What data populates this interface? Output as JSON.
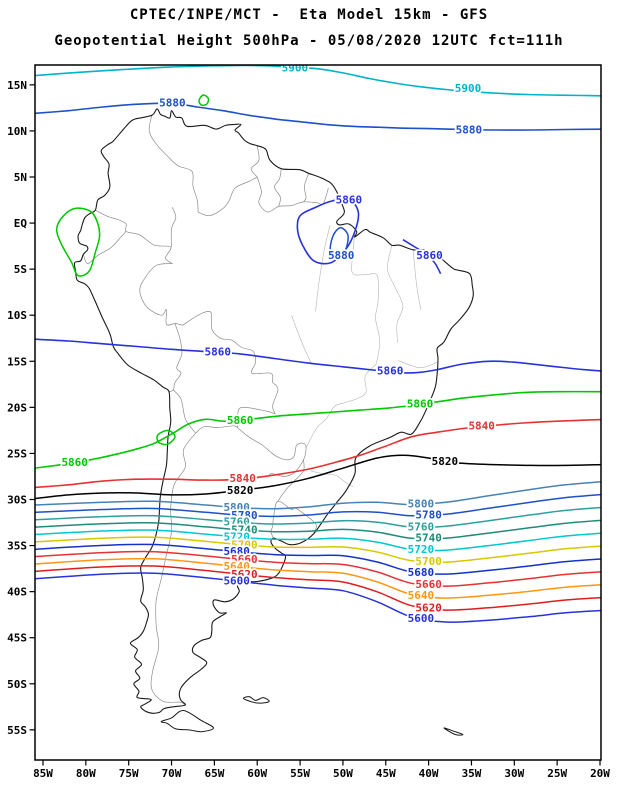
{
  "header": {
    "line1": "CPTEC/INPE/MCT -  Eta Model 15km - GFS",
    "line2": "Geopotential Height 500hPa - 05/08/2020 12UTC fct=111h"
  },
  "axes": {
    "lat": [
      {
        "label": "15N",
        "deg": 15
      },
      {
        "label": "10N",
        "deg": 10
      },
      {
        "label": "5N",
        "deg": 5
      },
      {
        "label": "EQ",
        "deg": 0
      },
      {
        "label": "5S",
        "deg": -5
      },
      {
        "label": "10S",
        "deg": -10
      },
      {
        "label": "15S",
        "deg": -15
      },
      {
        "label": "20S",
        "deg": -20
      },
      {
        "label": "25S",
        "deg": -25
      },
      {
        "label": "30S",
        "deg": -30
      },
      {
        "label": "35S",
        "deg": -35
      },
      {
        "label": "40S",
        "deg": -40
      },
      {
        "label": "45S",
        "deg": -45
      },
      {
        "label": "50S",
        "deg": -50
      },
      {
        "label": "55S",
        "deg": -55
      }
    ],
    "lon": [
      {
        "label": "85W",
        "deg": 85
      },
      {
        "label": "80W",
        "deg": 80
      },
      {
        "label": "75W",
        "deg": 75
      },
      {
        "label": "70W",
        "deg": 70
      },
      {
        "label": "65W",
        "deg": 65
      },
      {
        "label": "60W",
        "deg": 60
      },
      {
        "label": "55W",
        "deg": 55
      },
      {
        "label": "50W",
        "deg": 50
      },
      {
        "label": "45W",
        "deg": 45
      },
      {
        "label": "40W",
        "deg": 40
      },
      {
        "label": "35W",
        "deg": 35
      },
      {
        "label": "30W",
        "deg": 30
      },
      {
        "label": "25W",
        "deg": 25
      },
      {
        "label": "20W",
        "deg": 20
      }
    ]
  },
  "chart_data": {
    "type": "contour-map",
    "title": "CPTEC/INPE/MCT -  Eta Model 15km - GFS",
    "subtitle": "Geopotential Height 500hPa - 05/08/2020 12UTC fct=111h",
    "grid": false,
    "domain": {
      "lon_west": 85,
      "lon_east": 20,
      "lat_north": 15,
      "lat_south": -55
    },
    "contour_interval": 20,
    "contours": [
      {
        "id": "5900-north",
        "level": 5900,
        "color": "#00b4c8",
        "closed": false,
        "width": 1.6,
        "points": [
          [
            86,
            16.0
          ],
          [
            81,
            16.35
          ],
          [
            76,
            16.65
          ],
          [
            71,
            16.9
          ],
          [
            66,
            17.05
          ],
          [
            61,
            17.1
          ],
          [
            57,
            17.0
          ],
          [
            53,
            16.75
          ],
          [
            50,
            16.3
          ],
          [
            47,
            15.7
          ],
          [
            44,
            15.2
          ],
          [
            41,
            14.8
          ],
          [
            38,
            14.5
          ],
          [
            34,
            14.2
          ],
          [
            30,
            14.0
          ],
          [
            26,
            13.9
          ],
          [
            22,
            13.85
          ],
          [
            19,
            13.8
          ]
        ],
        "labels": [
          [
            55.6,
            16.85
          ],
          [
            35.4,
            14.6
          ]
        ]
      },
      {
        "id": "5880-north",
        "level": 5880,
        "color": "#1e50c8",
        "closed": false,
        "width": 1.6,
        "points": [
          [
            86,
            11.9
          ],
          [
            82,
            12.2
          ],
          [
            78,
            12.6
          ],
          [
            74,
            12.9
          ],
          [
            70,
            13.0
          ],
          [
            67,
            12.6
          ],
          [
            64,
            12.2
          ],
          [
            61,
            11.7
          ],
          [
            58,
            11.3
          ],
          [
            55,
            11.0
          ],
          [
            52,
            10.7
          ],
          [
            49,
            10.5
          ],
          [
            46,
            10.4
          ],
          [
            43,
            10.3
          ],
          [
            40,
            10.25
          ],
          [
            36,
            10.15
          ],
          [
            32,
            10.1
          ],
          [
            28,
            10.1
          ],
          [
            24,
            10.15
          ],
          [
            19,
            10.2
          ]
        ],
        "labels": [
          [
            69.9,
            13.05
          ],
          [
            35.3,
            10.1
          ]
        ]
      },
      {
        "id": "green-cell-north",
        "level": 5880,
        "color": "#00c800",
        "closed": true,
        "width": 1.5,
        "points": [
          [
            66.8,
            13.3
          ],
          [
            66.3,
            13.9
          ],
          [
            65.7,
            13.5
          ],
          [
            65.9,
            12.9
          ],
          [
            66.5,
            12.8
          ]
        ],
        "labels": []
      },
      {
        "id": "green-cell-andes",
        "level": 5880,
        "color": "#00c800",
        "closed": true,
        "width": 1.5,
        "points": [
          [
            82.6,
            0.8
          ],
          [
            81.2,
            1.6
          ],
          [
            79.5,
            1.3
          ],
          [
            78.7,
            0.2
          ],
          [
            78.4,
            -1.4
          ],
          [
            78.9,
            -3.2
          ],
          [
            79.6,
            -5.2
          ],
          [
            80.9,
            -5.7
          ],
          [
            81.7,
            -4.2
          ],
          [
            82.9,
            -2.2
          ],
          [
            83.4,
            -0.6
          ]
        ],
        "labels": []
      },
      {
        "id": "5860-mid",
        "level": 5860,
        "color": "#2832dc",
        "closed": false,
        "width": 1.6,
        "points": [
          [
            86,
            -12.6
          ],
          [
            82,
            -12.8
          ],
          [
            78,
            -13.1
          ],
          [
            74,
            -13.4
          ],
          [
            70,
            -13.7
          ],
          [
            66,
            -13.95
          ],
          [
            62,
            -14.2
          ],
          [
            58,
            -14.7
          ],
          [
            54,
            -15.2
          ],
          [
            50,
            -15.6
          ],
          [
            46,
            -16.0
          ],
          [
            43,
            -16.25
          ],
          [
            41,
            -16.2
          ],
          [
            39,
            -15.9
          ],
          [
            36,
            -15.3
          ],
          [
            33,
            -15.0
          ],
          [
            30,
            -15.1
          ],
          [
            26,
            -15.5
          ],
          [
            22,
            -15.9
          ],
          [
            19,
            -16.1
          ]
        ],
        "labels": [
          [
            64.6,
            -14.0
          ],
          [
            44.5,
            -16.05
          ]
        ]
      },
      {
        "id": "5860-amazon-ring",
        "level": 5860,
        "color": "#2832dc",
        "closed": true,
        "width": 1.6,
        "points": [
          [
            55.0,
            0.8
          ],
          [
            53.2,
            1.7
          ],
          [
            51.3,
            2.4
          ],
          [
            49.3,
            2.6
          ],
          [
            48.2,
            1.2
          ],
          [
            48.6,
            -0.9
          ],
          [
            49.7,
            -2.9
          ],
          [
            51.4,
            -4.3
          ],
          [
            53.4,
            -4.1
          ],
          [
            54.7,
            -2.4
          ],
          [
            55.3,
            -0.7
          ]
        ],
        "labels": [
          [
            49.3,
            2.5
          ]
        ]
      },
      {
        "id": "5880-amazon-inner",
        "level": 5880,
        "color": "#1e50c8",
        "closed": true,
        "width": 1.5,
        "points": [
          [
            51.2,
            -1.5
          ],
          [
            50.3,
            -0.5
          ],
          [
            49.4,
            -1.4
          ],
          [
            49.9,
            -3.2
          ],
          [
            51.4,
            -3.2
          ]
        ],
        "labels": [
          [
            50.2,
            -3.5
          ]
        ]
      },
      {
        "id": "5860-ne-arc",
        "level": 5860,
        "color": "#2832dc",
        "closed": false,
        "width": 1.6,
        "points": [
          [
            43.0,
            -1.8
          ],
          [
            41.6,
            -2.6
          ],
          [
            40.4,
            -3.3
          ],
          [
            39.3,
            -4.3
          ],
          [
            38.6,
            -5.5
          ]
        ],
        "labels": [
          [
            39.9,
            -3.5
          ]
        ]
      },
      {
        "id": "5860-green",
        "level": 5860,
        "color": "#00c800",
        "closed": false,
        "width": 1.6,
        "points": [
          [
            86,
            -26.6
          ],
          [
            83.5,
            -26.3
          ],
          [
            81.3,
            -26.0
          ],
          [
            79,
            -25.6
          ],
          [
            76.5,
            -25.1
          ],
          [
            74,
            -24.5
          ],
          [
            72,
            -23.9
          ],
          [
            70,
            -22.9
          ],
          [
            68,
            -21.8
          ],
          [
            66,
            -21.3
          ],
          [
            64,
            -21.5
          ],
          [
            62,
            -21.4
          ],
          [
            60,
            -21.2
          ],
          [
            57,
            -20.9
          ],
          [
            54,
            -20.7
          ],
          [
            51,
            -20.5
          ],
          [
            48,
            -20.3
          ],
          [
            45,
            -20.1
          ],
          [
            42,
            -19.8
          ],
          [
            39,
            -19.4
          ],
          [
            36,
            -19.0
          ],
          [
            33,
            -18.7
          ],
          [
            29,
            -18.4
          ],
          [
            25,
            -18.3
          ],
          [
            19,
            -18.3
          ]
        ],
        "labels": [
          [
            81.3,
            -26.0
          ],
          [
            62.0,
            -21.4
          ],
          [
            41.0,
            -19.65
          ]
        ]
      },
      {
        "id": "5860-green-loop",
        "level": 5860,
        "color": "#00c800",
        "closed": true,
        "width": 1.5,
        "points": [
          [
            71.6,
            -23.0
          ],
          [
            70.4,
            -22.5
          ],
          [
            69.6,
            -23.2
          ],
          [
            70.5,
            -24.0
          ],
          [
            71.5,
            -23.8
          ]
        ],
        "labels": []
      },
      {
        "id": "5840-red",
        "level": 5840,
        "color": "#e63232",
        "closed": false,
        "width": 1.6,
        "points": [
          [
            86,
            -28.7
          ],
          [
            82,
            -28.4
          ],
          [
            78,
            -28.0
          ],
          [
            74,
            -27.8
          ],
          [
            70,
            -27.8
          ],
          [
            66,
            -27.9
          ],
          [
            63,
            -27.85
          ],
          [
            60,
            -27.6
          ],
          [
            57,
            -27.2
          ],
          [
            54,
            -26.7
          ],
          [
            51,
            -26.0
          ],
          [
            48,
            -25.2
          ],
          [
            45,
            -24.2
          ],
          [
            42,
            -23.2
          ],
          [
            39,
            -22.7
          ],
          [
            36,
            -22.3
          ],
          [
            33,
            -22.0
          ],
          [
            29,
            -21.7
          ],
          [
            25,
            -21.5
          ],
          [
            19,
            -21.3
          ]
        ],
        "labels": [
          [
            61.7,
            -27.7
          ],
          [
            33.8,
            -22.05
          ]
        ]
      },
      {
        "id": "5820-black",
        "level": 5820,
        "color": "#000000",
        "closed": false,
        "width": 1.5,
        "points": [
          [
            86,
            -29.9
          ],
          [
            82,
            -29.5
          ],
          [
            78,
            -29.3
          ],
          [
            74,
            -29.3
          ],
          [
            70,
            -29.5
          ],
          [
            66,
            -29.4
          ],
          [
            62,
            -29.0
          ],
          [
            58,
            -28.5
          ],
          [
            54,
            -27.7
          ],
          [
            50,
            -26.6
          ],
          [
            46,
            -25.5
          ],
          [
            43,
            -25.2
          ],
          [
            40,
            -25.5
          ],
          [
            37,
            -26.0
          ],
          [
            33,
            -26.2
          ],
          [
            28,
            -26.3
          ],
          [
            24,
            -26.3
          ],
          [
            19,
            -26.2
          ]
        ],
        "labels": [
          [
            62.0,
            -29.0
          ],
          [
            38.1,
            -25.85
          ]
        ]
      }
    ],
    "contour_family": {
      "comment_levels_north_to_south": [
        5800,
        5780,
        5760,
        5740,
        5720,
        5700,
        5680,
        5660,
        5640,
        5620,
        5600
      ],
      "lons": [
        86,
        78,
        72,
        66,
        62,
        58,
        54,
        50,
        46,
        42,
        38,
        33,
        28,
        24,
        19
      ],
      "base_lat": [
        -30.6,
        -30.3,
        -30.2,
        -30.6,
        -30.9,
        -31.0,
        -30.8,
        -30.4,
        -30.3,
        -30.55,
        -30.3,
        -29.6,
        -28.9,
        -28.4,
        -28.0
      ],
      "spread": [
        0.8,
        0.78,
        0.78,
        0.79,
        0.8,
        0.83,
        0.88,
        0.95,
        1.08,
        1.22,
        1.3,
        1.35,
        1.38,
        1.39,
        1.4
      ],
      "levels": [
        {
          "value": 5800,
          "color": "#4682b4"
        },
        {
          "value": 5780,
          "color": "#1e50c8"
        },
        {
          "value": 5760,
          "color": "#2e9e9e"
        },
        {
          "value": 5740,
          "color": "#1e8c78"
        },
        {
          "value": 5720,
          "color": "#00c8d2"
        },
        {
          "value": 5700,
          "color": "#d8c800"
        },
        {
          "value": 5680,
          "color": "#1432c8"
        },
        {
          "value": 5660,
          "color": "#e63232"
        },
        {
          "value": 5640,
          "color": "#ff9614"
        },
        {
          "value": 5620,
          "color": "#dc1e1e"
        },
        {
          "value": 5600,
          "color": "#2832dc"
        }
      ],
      "label_lons": {
        "left": [
          62.4,
          61.5
        ],
        "right": [
          40.9,
          40.0
        ]
      }
    }
  }
}
